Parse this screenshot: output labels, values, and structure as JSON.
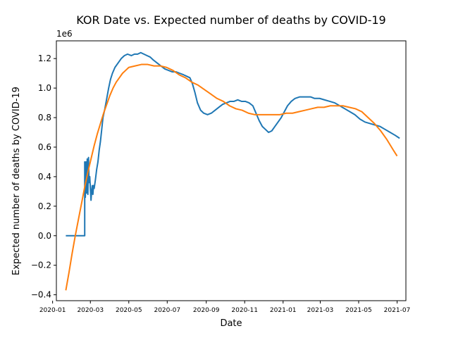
{
  "chart_data": {
    "type": "line",
    "title": "KOR Date vs. Expected number of deaths by COVID-19",
    "xlabel": "Date",
    "ylabel": "Expected number of deaths by COVID-19",
    "y_offset_label": "1e6",
    "xlim": [
      "2020-01-07",
      "2021-07-15"
    ],
    "ylim": [
      -0.44,
      1.32
    ],
    "x_ticks": [
      "2020-01-01",
      "2020-03-01",
      "2020-05-01",
      "2020-07-01",
      "2020-09-01",
      "2020-11-01",
      "2021-01-01",
      "2021-03-01",
      "2021-05-01",
      "2021-07-01"
    ],
    "x_tick_labels": [
      "2020-01",
      "2020-03",
      "2020-05",
      "2020-07",
      "2020-09",
      "2020-11",
      "2021-01",
      "2021-03",
      "2021-05",
      "2021-07"
    ],
    "y_ticks": [
      -0.4,
      -0.2,
      0.0,
      0.2,
      0.4,
      0.6,
      0.8,
      1.0,
      1.2
    ],
    "y_tick_labels": [
      "−0.4",
      "−0.2",
      "0.0",
      "0.2",
      "0.4",
      "0.6",
      "0.8",
      "1.0",
      "1.2"
    ],
    "grid": false,
    "series": [
      {
        "color": "#1f77b4",
        "points": [
          [
            "2020-01-22",
            0.0
          ],
          [
            "2020-02-21",
            0.0
          ],
          [
            "2020-02-21",
            0.5
          ],
          [
            "2020-02-22",
            0.26
          ],
          [
            "2020-02-23",
            0.5
          ],
          [
            "2020-02-24",
            0.29
          ],
          [
            "2020-02-25",
            0.52
          ],
          [
            "2020-02-26",
            0.28
          ],
          [
            "2020-02-27",
            0.53
          ],
          [
            "2020-02-28",
            0.36
          ],
          [
            "2020-02-29",
            0.4
          ],
          [
            "2020-03-01",
            0.32
          ],
          [
            "2020-03-02",
            0.24
          ],
          [
            "2020-03-03",
            0.3
          ],
          [
            "2020-03-04",
            0.34
          ],
          [
            "2020-03-05",
            0.28
          ],
          [
            "2020-03-06",
            0.34
          ],
          [
            "2020-03-07",
            0.32
          ],
          [
            "2020-03-09",
            0.38
          ],
          [
            "2020-03-11",
            0.45
          ],
          [
            "2020-03-13",
            0.5
          ],
          [
            "2020-03-15",
            0.58
          ],
          [
            "2020-03-17",
            0.64
          ],
          [
            "2020-03-19",
            0.72
          ],
          [
            "2020-03-21",
            0.8
          ],
          [
            "2020-03-24",
            0.86
          ],
          [
            "2020-03-27",
            0.93
          ],
          [
            "2020-03-30",
            1.0
          ],
          [
            "2020-04-02",
            1.06
          ],
          [
            "2020-04-05",
            1.1
          ],
          [
            "2020-04-09",
            1.14
          ],
          [
            "2020-04-14",
            1.17
          ],
          [
            "2020-04-19",
            1.2
          ],
          [
            "2020-04-24",
            1.22
          ],
          [
            "2020-04-29",
            1.23
          ],
          [
            "2020-05-05",
            1.22
          ],
          [
            "2020-05-10",
            1.23
          ],
          [
            "2020-05-15",
            1.23
          ],
          [
            "2020-05-20",
            1.24
          ],
          [
            "2020-05-25",
            1.23
          ],
          [
            "2020-05-30",
            1.22
          ],
          [
            "2020-06-04",
            1.21
          ],
          [
            "2020-06-09",
            1.19
          ],
          [
            "2020-06-15",
            1.17
          ],
          [
            "2020-06-21",
            1.15
          ],
          [
            "2020-06-27",
            1.13
          ],
          [
            "2020-07-03",
            1.12
          ],
          [
            "2020-07-09",
            1.11
          ],
          [
            "2020-07-15",
            1.11
          ],
          [
            "2020-07-21",
            1.1
          ],
          [
            "2020-07-27",
            1.09
          ],
          [
            "2020-08-01",
            1.08
          ],
          [
            "2020-08-06",
            1.07
          ],
          [
            "2020-08-10",
            1.03
          ],
          [
            "2020-08-14",
            0.97
          ],
          [
            "2020-08-18",
            0.9
          ],
          [
            "2020-08-23",
            0.85
          ],
          [
            "2020-08-28",
            0.83
          ],
          [
            "2020-09-03",
            0.82
          ],
          [
            "2020-09-09",
            0.83
          ],
          [
            "2020-09-15",
            0.85
          ],
          [
            "2020-09-21",
            0.87
          ],
          [
            "2020-09-27",
            0.89
          ],
          [
            "2020-10-03",
            0.9
          ],
          [
            "2020-10-09",
            0.91
          ],
          [
            "2020-10-15",
            0.91
          ],
          [
            "2020-10-21",
            0.92
          ],
          [
            "2020-10-27",
            0.91
          ],
          [
            "2020-11-02",
            0.91
          ],
          [
            "2020-11-08",
            0.9
          ],
          [
            "2020-11-14",
            0.88
          ],
          [
            "2020-11-19",
            0.83
          ],
          [
            "2020-11-24",
            0.78
          ],
          [
            "2020-11-29",
            0.74
          ],
          [
            "2020-12-04",
            0.72
          ],
          [
            "2020-12-09",
            0.7
          ],
          [
            "2020-12-14",
            0.71
          ],
          [
            "2020-12-19",
            0.74
          ],
          [
            "2020-12-24",
            0.77
          ],
          [
            "2020-12-29",
            0.8
          ],
          [
            "2021-01-03",
            0.84
          ],
          [
            "2021-01-08",
            0.88
          ],
          [
            "2021-01-14",
            0.91
          ],
          [
            "2021-01-20",
            0.93
          ],
          [
            "2021-01-27",
            0.94
          ],
          [
            "2021-02-05",
            0.94
          ],
          [
            "2021-02-14",
            0.94
          ],
          [
            "2021-02-20",
            0.93
          ],
          [
            "2021-02-28",
            0.93
          ],
          [
            "2021-03-08",
            0.92
          ],
          [
            "2021-03-16",
            0.91
          ],
          [
            "2021-03-24",
            0.9
          ],
          [
            "2021-04-01",
            0.88
          ],
          [
            "2021-04-09",
            0.86
          ],
          [
            "2021-04-17",
            0.84
          ],
          [
            "2021-04-25",
            0.82
          ],
          [
            "2021-05-03",
            0.79
          ],
          [
            "2021-05-11",
            0.77
          ],
          [
            "2021-05-19",
            0.76
          ],
          [
            "2021-05-27",
            0.75
          ],
          [
            "2021-06-04",
            0.74
          ],
          [
            "2021-06-12",
            0.72
          ],
          [
            "2021-06-20",
            0.7
          ],
          [
            "2021-06-28",
            0.68
          ],
          [
            "2021-07-05",
            0.66
          ]
        ]
      },
      {
        "color": "#ff7f0e",
        "points": [
          [
            "2020-01-22",
            -0.37
          ],
          [
            "2020-01-27",
            -0.25
          ],
          [
            "2020-02-01",
            -0.12
          ],
          [
            "2020-02-06",
            0.0
          ],
          [
            "2020-02-11",
            0.11
          ],
          [
            "2020-02-16",
            0.22
          ],
          [
            "2020-02-21",
            0.33
          ],
          [
            "2020-02-26",
            0.43
          ],
          [
            "2020-03-02",
            0.52
          ],
          [
            "2020-03-07",
            0.61
          ],
          [
            "2020-03-12",
            0.69
          ],
          [
            "2020-03-17",
            0.76
          ],
          [
            "2020-03-22",
            0.83
          ],
          [
            "2020-03-27",
            0.89
          ],
          [
            "2020-04-01",
            0.95
          ],
          [
            "2020-04-06",
            1.0
          ],
          [
            "2020-04-11",
            1.04
          ],
          [
            "2020-04-16",
            1.07
          ],
          [
            "2020-04-21",
            1.1
          ],
          [
            "2020-04-26",
            1.12
          ],
          [
            "2020-05-01",
            1.14
          ],
          [
            "2020-05-11",
            1.15
          ],
          [
            "2020-05-21",
            1.16
          ],
          [
            "2020-05-31",
            1.16
          ],
          [
            "2020-06-10",
            1.15
          ],
          [
            "2020-06-20",
            1.15
          ],
          [
            "2020-06-30",
            1.14
          ],
          [
            "2020-07-10",
            1.12
          ],
          [
            "2020-07-20",
            1.09
          ],
          [
            "2020-07-30",
            1.07
          ],
          [
            "2020-08-09",
            1.04
          ],
          [
            "2020-08-19",
            1.02
          ],
          [
            "2020-08-29",
            0.99
          ],
          [
            "2020-09-08",
            0.96
          ],
          [
            "2020-09-18",
            0.93
          ],
          [
            "2020-09-28",
            0.91
          ],
          [
            "2020-10-08",
            0.88
          ],
          [
            "2020-10-18",
            0.86
          ],
          [
            "2020-10-28",
            0.85
          ],
          [
            "2020-11-07",
            0.83
          ],
          [
            "2020-11-17",
            0.82
          ],
          [
            "2020-11-27",
            0.82
          ],
          [
            "2020-12-07",
            0.82
          ],
          [
            "2020-12-17",
            0.82
          ],
          [
            "2020-12-27",
            0.82
          ],
          [
            "2021-01-06",
            0.83
          ],
          [
            "2021-01-16",
            0.83
          ],
          [
            "2021-01-26",
            0.84
          ],
          [
            "2021-02-05",
            0.85
          ],
          [
            "2021-02-15",
            0.86
          ],
          [
            "2021-02-25",
            0.87
          ],
          [
            "2021-03-07",
            0.87
          ],
          [
            "2021-03-17",
            0.88
          ],
          [
            "2021-03-27",
            0.88
          ],
          [
            "2021-04-06",
            0.88
          ],
          [
            "2021-04-16",
            0.87
          ],
          [
            "2021-04-26",
            0.86
          ],
          [
            "2021-05-06",
            0.84
          ],
          [
            "2021-05-16",
            0.8
          ],
          [
            "2021-05-26",
            0.76
          ],
          [
            "2021-06-05",
            0.71
          ],
          [
            "2021-06-15",
            0.65
          ],
          [
            "2021-06-25",
            0.58
          ],
          [
            "2021-07-01",
            0.54
          ]
        ]
      }
    ]
  }
}
